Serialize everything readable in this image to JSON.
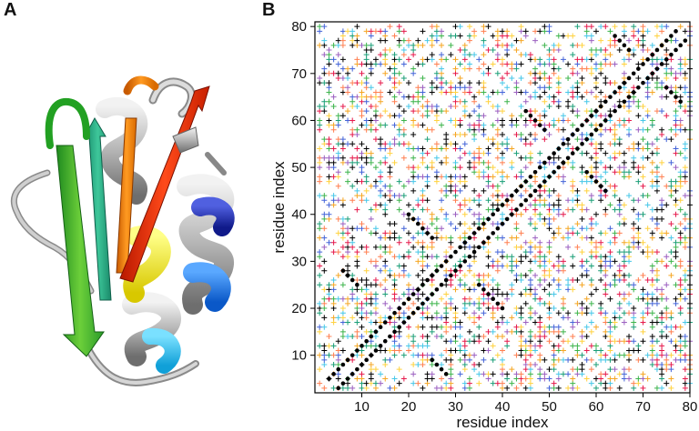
{
  "panels": {
    "a": {
      "letter": "A"
    },
    "b": {
      "letter": "B"
    }
  },
  "chart_data": {
    "type": "scatter",
    "title": "",
    "xlabel": "residue index",
    "ylabel": "residue index",
    "xlim": [
      0,
      80
    ],
    "ylim": [
      2,
      81
    ],
    "x_ticks": [
      10,
      20,
      30,
      40,
      50,
      60,
      70,
      80
    ],
    "y_ticks": [
      10,
      20,
      30,
      40,
      50,
      60,
      70,
      80
    ],
    "grid": false,
    "legend": "none",
    "marker_colors": [
      "#e6194b",
      "#f5a623",
      "#3cb44b",
      "#4363d8",
      "#46c7e8",
      "#9b5fc0",
      "#ffd23f",
      "#1a9e77",
      "#ff7f50"
    ],
    "contact_color": "#000000",
    "diagonal_contacts": [
      [
        3,
        5
      ],
      [
        4,
        6
      ],
      [
        5,
        7
      ],
      [
        6,
        8
      ],
      [
        7,
        9
      ],
      [
        8,
        10
      ],
      [
        9,
        11
      ],
      [
        10,
        12
      ],
      [
        11,
        13
      ],
      [
        12,
        14
      ],
      [
        13,
        15
      ],
      [
        14,
        16
      ],
      [
        15,
        17
      ],
      [
        16,
        18
      ],
      [
        17,
        19
      ],
      [
        18,
        20
      ],
      [
        19,
        21
      ],
      [
        20,
        22
      ],
      [
        21,
        23
      ],
      [
        22,
        24
      ],
      [
        23,
        25
      ],
      [
        24,
        26
      ],
      [
        25,
        27
      ],
      [
        26,
        28
      ],
      [
        27,
        29
      ],
      [
        28,
        30
      ],
      [
        29,
        31
      ],
      [
        30,
        32
      ],
      [
        31,
        33
      ],
      [
        32,
        34
      ],
      [
        33,
        35
      ],
      [
        34,
        36
      ],
      [
        35,
        37
      ],
      [
        36,
        38
      ],
      [
        37,
        39
      ],
      [
        38,
        40
      ],
      [
        39,
        41
      ],
      [
        40,
        42
      ],
      [
        41,
        43
      ],
      [
        42,
        44
      ],
      [
        43,
        45
      ],
      [
        44,
        46
      ],
      [
        45,
        47
      ],
      [
        46,
        48
      ],
      [
        47,
        49
      ],
      [
        48,
        50
      ],
      [
        49,
        51
      ],
      [
        50,
        52
      ],
      [
        51,
        53
      ],
      [
        52,
        54
      ],
      [
        53,
        55
      ],
      [
        54,
        56
      ],
      [
        55,
        57
      ],
      [
        56,
        58
      ],
      [
        57,
        59
      ],
      [
        58,
        60
      ],
      [
        59,
        61
      ],
      [
        60,
        62
      ],
      [
        61,
        63
      ],
      [
        62,
        64
      ],
      [
        63,
        65
      ],
      [
        64,
        66
      ],
      [
        65,
        67
      ],
      [
        66,
        68
      ],
      [
        67,
        69
      ],
      [
        68,
        70
      ],
      [
        69,
        71
      ],
      [
        70,
        72
      ],
      [
        71,
        73
      ],
      [
        72,
        74
      ],
      [
        73,
        75
      ],
      [
        74,
        76
      ],
      [
        75,
        77
      ],
      [
        76,
        78
      ],
      [
        77,
        79
      ],
      [
        5,
        3
      ],
      [
        6,
        4
      ],
      [
        7,
        5
      ],
      [
        8,
        6
      ],
      [
        9,
        7
      ],
      [
        10,
        8
      ],
      [
        11,
        9
      ],
      [
        12,
        10
      ],
      [
        13,
        11
      ],
      [
        14,
        12
      ],
      [
        15,
        13
      ],
      [
        16,
        14
      ],
      [
        17,
        15
      ],
      [
        18,
        16
      ],
      [
        19,
        17
      ],
      [
        20,
        18
      ],
      [
        21,
        19
      ],
      [
        22,
        20
      ],
      [
        23,
        21
      ],
      [
        24,
        22
      ],
      [
        25,
        23
      ],
      [
        26,
        24
      ],
      [
        27,
        25
      ],
      [
        28,
        26
      ],
      [
        29,
        27
      ],
      [
        30,
        28
      ],
      [
        31,
        29
      ],
      [
        32,
        30
      ],
      [
        33,
        31
      ],
      [
        34,
        32
      ],
      [
        35,
        33
      ],
      [
        36,
        34
      ],
      [
        37,
        35
      ],
      [
        38,
        36
      ],
      [
        39,
        37
      ],
      [
        40,
        38
      ],
      [
        41,
        39
      ],
      [
        42,
        40
      ],
      [
        43,
        41
      ],
      [
        44,
        42
      ],
      [
        45,
        43
      ],
      [
        46,
        44
      ],
      [
        47,
        45
      ],
      [
        48,
        46
      ],
      [
        49,
        47
      ],
      [
        50,
        48
      ],
      [
        51,
        49
      ],
      [
        52,
        50
      ],
      [
        53,
        51
      ],
      [
        54,
        52
      ],
      [
        55,
        53
      ],
      [
        56,
        54
      ],
      [
        57,
        55
      ],
      [
        58,
        56
      ],
      [
        59,
        57
      ],
      [
        60,
        58
      ],
      [
        61,
        59
      ],
      [
        62,
        60
      ],
      [
        63,
        61
      ],
      [
        64,
        62
      ],
      [
        65,
        63
      ],
      [
        66,
        64
      ],
      [
        67,
        65
      ],
      [
        68,
        66
      ],
      [
        69,
        67
      ],
      [
        70,
        68
      ],
      [
        71,
        69
      ],
      [
        72,
        70
      ],
      [
        73,
        71
      ],
      [
        74,
        72
      ],
      [
        75,
        73
      ],
      [
        76,
        74
      ],
      [
        77,
        75
      ],
      [
        78,
        76
      ],
      [
        79,
        77
      ],
      [
        20,
        40
      ],
      [
        21,
        39
      ],
      [
        22,
        38
      ],
      [
        23,
        37
      ],
      [
        24,
        36
      ],
      [
        25,
        35
      ],
      [
        40,
        20
      ],
      [
        39,
        21
      ],
      [
        38,
        22
      ],
      [
        37,
        23
      ],
      [
        36,
        24
      ],
      [
        35,
        25
      ],
      [
        45,
        62
      ],
      [
        46,
        61
      ],
      [
        47,
        60
      ],
      [
        48,
        59
      ],
      [
        49,
        58
      ],
      [
        62,
        45
      ],
      [
        61,
        46
      ],
      [
        60,
        47
      ],
      [
        59,
        48
      ],
      [
        58,
        49
      ],
      [
        6,
        28
      ],
      [
        7,
        27
      ],
      [
        8,
        26
      ],
      [
        9,
        25
      ],
      [
        28,
        6
      ],
      [
        27,
        7
      ],
      [
        26,
        8
      ],
      [
        25,
        9
      ],
      [
        64,
        78
      ],
      [
        65,
        77
      ],
      [
        66,
        76
      ],
      [
        67,
        75
      ],
      [
        78,
        64
      ],
      [
        77,
        65
      ],
      [
        76,
        66
      ],
      [
        75,
        67
      ]
    ]
  }
}
